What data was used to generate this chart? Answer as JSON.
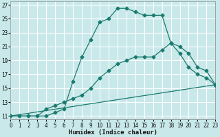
{
  "xlabel": "Humidex (Indice chaleur)",
  "bg_color": "#c8e8ea",
  "grid_color": "#ffffff",
  "line_color": "#1a7a6e",
  "xlim": [
    0,
    23
  ],
  "ylim": [
    10.5,
    27.5
  ],
  "yticks": [
    11,
    13,
    15,
    17,
    19,
    21,
    23,
    25,
    27
  ],
  "xticks": [
    0,
    1,
    2,
    3,
    4,
    5,
    6,
    7,
    8,
    9,
    10,
    11,
    12,
    13,
    14,
    15,
    16,
    17,
    18,
    19,
    20,
    21,
    22,
    23
  ],
  "line1_x": [
    0,
    1,
    2,
    3,
    4,
    5,
    6,
    7,
    8,
    9,
    10,
    11,
    12,
    13,
    14,
    15,
    16,
    17,
    18,
    19,
    20,
    21,
    22,
    23
  ],
  "line1_y": [
    11,
    11,
    11,
    11,
    11,
    11.5,
    12,
    16,
    19.5,
    22,
    24.5,
    25,
    26.5,
    26.5,
    26,
    25.5,
    25.5,
    25.5,
    21.5,
    21,
    20,
    18,
    17.5,
    15.5
  ],
  "line2_x": [
    0,
    1,
    2,
    3,
    4,
    5,
    6,
    7,
    8,
    9,
    10,
    11,
    12,
    13,
    14,
    15,
    16,
    17,
    18,
    19,
    20,
    21,
    22,
    23
  ],
  "line2_y": [
    11,
    11,
    11,
    11,
    12,
    12.5,
    13,
    13.5,
    14,
    15,
    16.5,
    17.5,
    18.5,
    19,
    19.5,
    19.5,
    19.5,
    20.5,
    21.5,
    20,
    18,
    17,
    16.5,
    15.5
  ],
  "line3_x": [
    0,
    23
  ],
  "line3_y": [
    11,
    15.5
  ]
}
